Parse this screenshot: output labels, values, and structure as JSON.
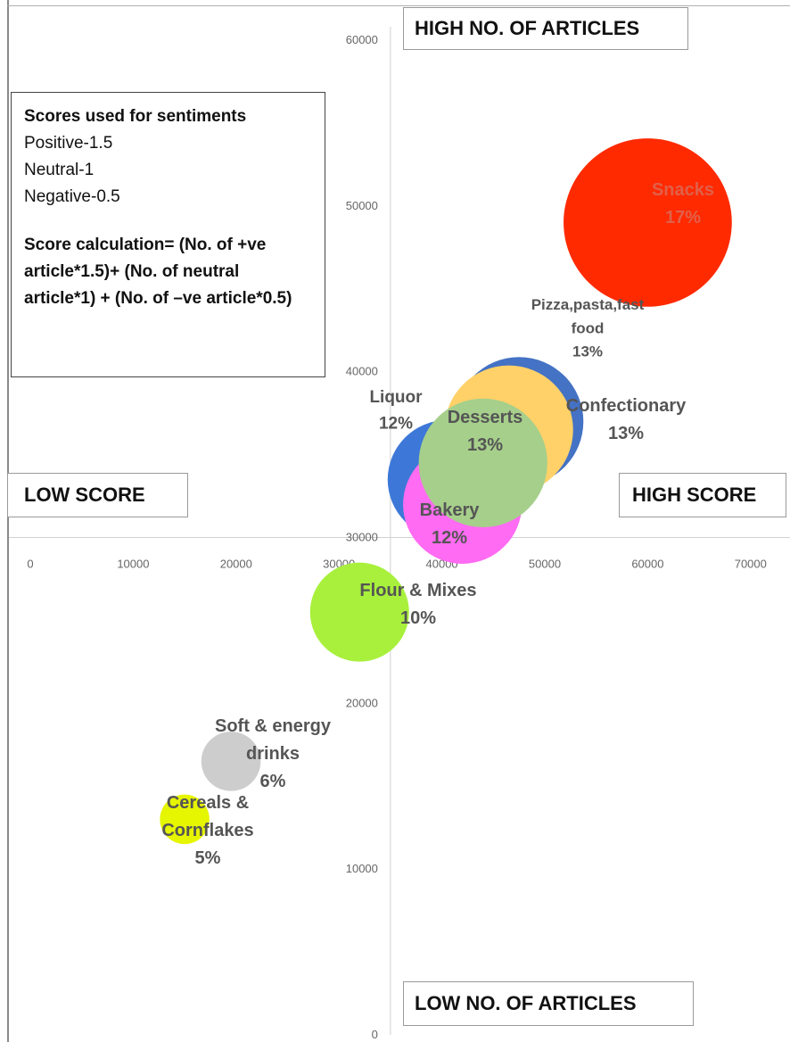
{
  "chart_data": {
    "type": "bubble",
    "x_axis": {
      "min": 0,
      "max": 70000,
      "ticks": [
        0,
        10000,
        20000,
        30000,
        40000,
        50000,
        60000,
        70000
      ]
    },
    "y_axis": {
      "min": 0,
      "max": 60000,
      "ticks": [
        0,
        10000,
        20000,
        30000,
        40000,
        50000,
        60000
      ]
    },
    "points": [
      {
        "name": "Liquor",
        "pct": "12%",
        "x": 40500,
        "y": 33500,
        "size": 12,
        "color": "#3d78d8"
      },
      {
        "name": "Confectionary",
        "pct": "13%",
        "x": 47500,
        "y": 37000,
        "size": 13,
        "color": "#4472c4"
      },
      {
        "name": "Pizza,pasta,fast food",
        "pct": "13%",
        "x": 46500,
        "y": 36500,
        "size": 13,
        "color": "#ffd168"
      },
      {
        "name": "Bakery",
        "pct": "12%",
        "x": 42000,
        "y": 32000,
        "size": 12,
        "color": "#ff6bf2"
      },
      {
        "name": "Desserts",
        "pct": "13%",
        "x": 44000,
        "y": 34500,
        "size": 13,
        "color": "#a6cf8b"
      },
      {
        "name": "Snacks",
        "pct": "17%",
        "x": 60000,
        "y": 49000,
        "size": 17,
        "color": "#ff2a00"
      },
      {
        "name": "Flour & Mixes",
        "pct": "10%",
        "x": 32000,
        "y": 25500,
        "size": 10,
        "color": "#a8f03c"
      },
      {
        "name": "Soft & energy drinks",
        "pct": "6%",
        "x": 19500,
        "y": 16500,
        "size": 6,
        "color": "#cdcdcd"
      },
      {
        "name": "Cereals & Cornflakes",
        "pct": "5%",
        "x": 15000,
        "y": 13000,
        "size": 5,
        "color": "#e6f500"
      }
    ],
    "data_labels": [
      {
        "lines": [
          "Liquor",
          "12%"
        ],
        "anchor": "Liquor",
        "color": "#555555"
      },
      {
        "lines": [
          "Pizza,pasta,fast",
          "food",
          "13%"
        ],
        "anchor": "Pizza,pasta,fast food",
        "color": "#555555"
      },
      {
        "lines": [
          "Confectionary",
          "13%"
        ],
        "anchor": "Confectionary",
        "color": "#555555"
      },
      {
        "lines": [
          "Desserts",
          "13%"
        ],
        "anchor": "Desserts",
        "color": "#555555"
      },
      {
        "lines": [
          "Bakery",
          "12%"
        ],
        "anchor": "Bakery",
        "color": "#555555"
      },
      {
        "lines": [
          "Snacks",
          "17%"
        ],
        "anchor": "Snacks",
        "color": "#e0604a"
      },
      {
        "lines": [
          "Flour & Mixes",
          "10%"
        ],
        "anchor": "Flour & Mixes",
        "color": "#555555"
      },
      {
        "lines": [
          "Soft & energy",
          "drinks",
          "6%"
        ],
        "anchor": "Soft & energy drinks",
        "color": "#555555"
      },
      {
        "lines": [
          "Cereals &",
          "Cornflakes",
          "5%"
        ],
        "anchor": "Cereals & Cornflakes",
        "color": "#555555"
      }
    ]
  },
  "quadrants": {
    "top": "HIGH NO. OF ARTICLES",
    "bottom": "LOW NO. OF ARTICLES",
    "left": "LOW SCORE",
    "right": "HIGH SCORE"
  },
  "legend": {
    "title": "Scores used for sentiments",
    "lines": [
      "Positive-1.5",
      "Neutral-1",
      "Negative-0.5"
    ],
    "formula": "Score calculation= (No. of +ve article*1.5)+ (No. of neutral article*1) + (No. of –ve article*0.5)"
  }
}
